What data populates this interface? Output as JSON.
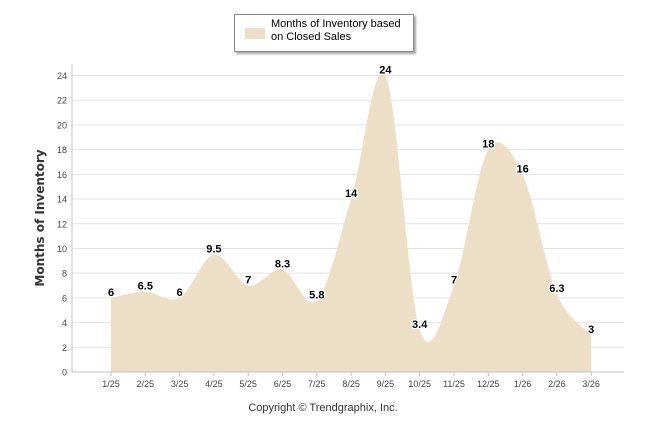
{
  "chart_data": {
    "type": "area",
    "categories": [
      "1/25",
      "2/25",
      "3/25",
      "4/25",
      "5/25",
      "6/25",
      "7/25",
      "8/25",
      "9/25",
      "10/25",
      "11/25",
      "12/25",
      "1/26",
      "2/26",
      "3/26"
    ],
    "series": [
      {
        "name": "Months of Inventory based on Closed Sales",
        "values": [
          6,
          6.5,
          6,
          9.5,
          7,
          8.3,
          5.8,
          14,
          24,
          3.4,
          7,
          18,
          16,
          6.3,
          3
        ],
        "labels": [
          "6",
          "6.5",
          "6",
          "9.5",
          "7",
          "8.3",
          "5.8",
          "14",
          "24",
          "3.4",
          "7",
          "18",
          "16",
          "6.3",
          "3"
        ]
      }
    ],
    "ylabel": "Months of Inventory",
    "xlabel": "",
    "ylim": [
      0,
      24
    ],
    "yticks": [
      "0",
      "2",
      "4",
      "6",
      "8",
      "10",
      "12",
      "14",
      "16",
      "18",
      "20",
      "22",
      "24"
    ],
    "legend": "top-center",
    "grid": true,
    "fill_color": "#ecdfc6"
  },
  "legend": {
    "label": "Months of Inventory based on Closed Sales"
  },
  "footer": {
    "copyright": "Copyright © Trendgraphix, Inc."
  }
}
